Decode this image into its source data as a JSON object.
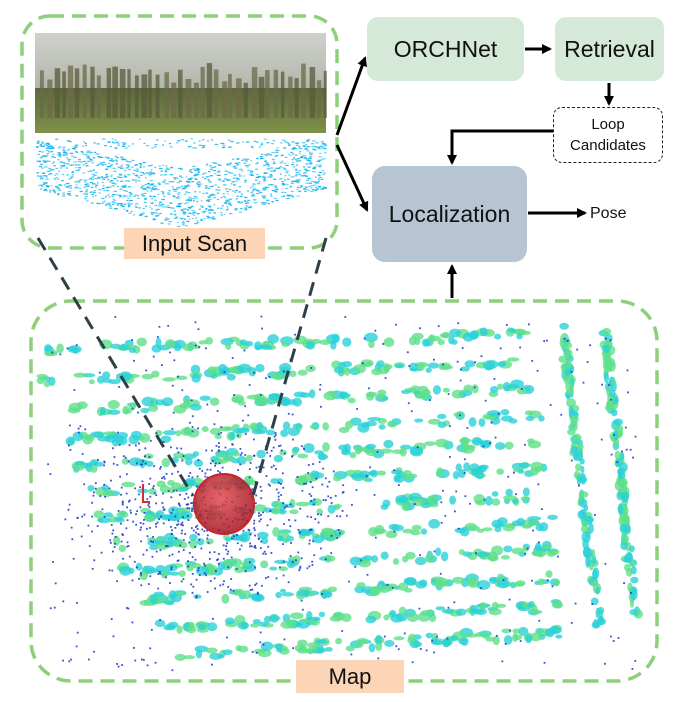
{
  "nodes": {
    "orchnet": "ORCHNet",
    "retrieval": "Retrieval",
    "loop_line1": "Loop",
    "loop_line2": "Candidates",
    "localization": "Localization",
    "pose": "Pose"
  },
  "labels": {
    "input_scan": "Input Scan",
    "map": "Map"
  },
  "colors": {
    "dashed_frame": "#8dcf7a",
    "process_box": "#d4e9d7",
    "localization_box": "#b7c4d2",
    "label_bg": "#fbd5b5",
    "points_blue": "#1530c8",
    "points_cyan": "#2ad1d8",
    "points_green": "#5fe08a",
    "query_marker": "#c8242f",
    "scan_points": "#0ab0ec"
  }
}
